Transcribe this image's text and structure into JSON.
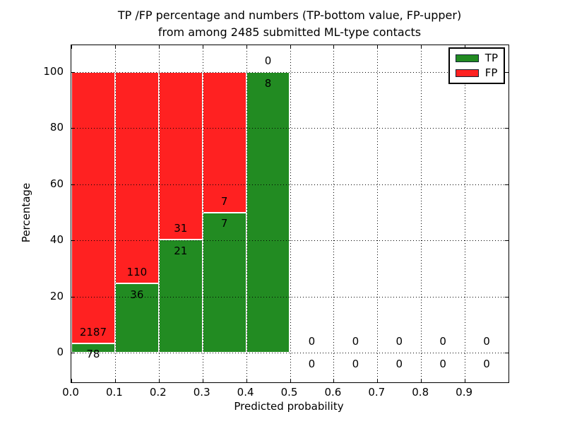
{
  "figure": {
    "title_line1": "TP /FP percentage and numbers (TP-bottom value, FP-upper)",
    "title_line2": "from among 2485 submitted ML-type contacts",
    "xlabel": "Predicted probability",
    "ylabel": "Percentage"
  },
  "legend": {
    "items": [
      {
        "label": "TP",
        "color": "#228b22"
      },
      {
        "label": "FP",
        "color": "#ff2121"
      }
    ]
  },
  "chart_data": {
    "type": "bar",
    "stacked": true,
    "normalized": "percent",
    "title": "TP /FP percentage and numbers (TP-bottom value, FP-upper) from among 2485 submitted ML-type contacts",
    "xlabel": "Predicted probability",
    "ylabel": "Percentage",
    "total_contacts": 2485,
    "bin_width": 0.1,
    "bin_starts": [
      0.0,
      0.1,
      0.2,
      0.3,
      0.4,
      0.5,
      0.6,
      0.7,
      0.8,
      0.9
    ],
    "series": [
      {
        "name": "TP",
        "color": "#228b22",
        "values": [
          78,
          36,
          21,
          7,
          8,
          0,
          0,
          0,
          0,
          0
        ]
      },
      {
        "name": "FP",
        "color": "#ff2121",
        "values": [
          2187,
          110,
          31,
          7,
          0,
          0,
          0,
          0,
          0,
          0
        ]
      }
    ],
    "tp_percent_of_bin": [
      3.44,
      24.66,
      40.38,
      50.0,
      100.0,
      0,
      0,
      0,
      0,
      0
    ],
    "xticks": [
      "0.0",
      "0.1",
      "0.2",
      "0.3",
      "0.4",
      "0.5",
      "0.6",
      "0.7",
      "0.8",
      "0.9"
    ],
    "yticks": [
      0,
      20,
      40,
      60,
      80,
      100
    ],
    "xlim": [
      0.0,
      1.0
    ],
    "ylim": [
      -10.5,
      109.5
    ],
    "grid": true,
    "grid_style": "dotted",
    "bar_edge_color": "#ffffff",
    "legend_position": "upper right",
    "label_offset_units": 4
  }
}
